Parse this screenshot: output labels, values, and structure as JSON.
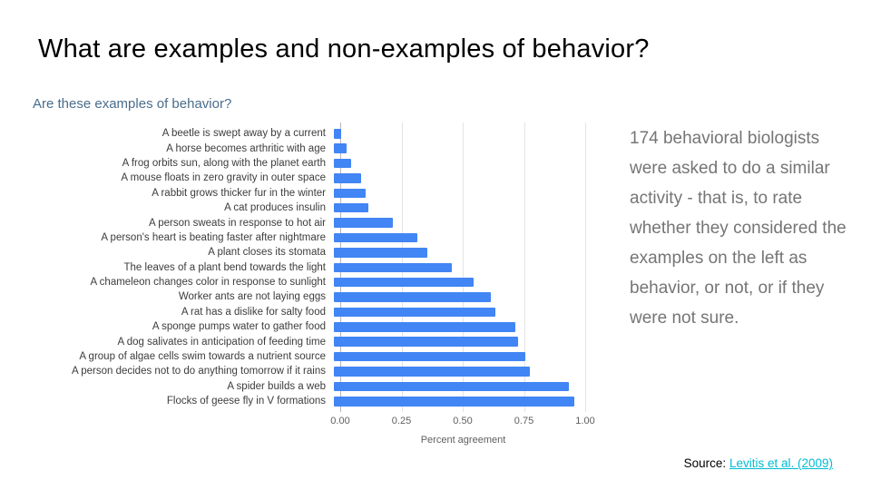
{
  "slide": {
    "title": "What are examples and non-examples of behavior?"
  },
  "chart_data": {
    "type": "bar",
    "orientation": "horizontal",
    "title": "Are these examples of behavior?",
    "xlabel": "Percent agreement",
    "xlim": [
      0,
      1
    ],
    "xticks": [
      "0.00",
      "0.25",
      "0.50",
      "0.75",
      "1.00"
    ],
    "grid": true,
    "bar_color": "#4285f4",
    "categories": [
      "A beetle is swept away by a current",
      "A horse becomes arthritic with age",
      "A frog orbits sun, along with the planet earth",
      "A mouse floats in zero gravity in outer space",
      "A rabbit grows thicker fur in the winter",
      "A cat produces insulin",
      "A person sweats in response to hot air",
      "A person's heart is beating faster after nightmare",
      "A plant closes its stomata",
      "The leaves of a plant bend towards the light",
      "A chameleon changes color in response to sunlight",
      "Worker ants are not laying eggs",
      "A rat has a dislike for salty food",
      "A sponge pumps water to gather food",
      "A dog salivates in anticipation of feeding time",
      "A group of algae cells swim towards a nutrient source",
      "A person decides not to do anything tomorrow if it rains",
      "A spider builds a web",
      "Flocks of geese fly in V formations"
    ],
    "values": [
      0.03,
      0.05,
      0.07,
      0.11,
      0.13,
      0.14,
      0.24,
      0.34,
      0.38,
      0.48,
      0.57,
      0.64,
      0.66,
      0.74,
      0.75,
      0.78,
      0.8,
      0.96,
      0.98
    ]
  },
  "side_note": {
    "text": "174 behavioral biologists were asked to do a similar activity - that is, to rate whether they considered the examples on the left as behavior, or not, or if they were not sure."
  },
  "source": {
    "prefix": "Source: ",
    "link_label": "Levitis et al. (2009)",
    "link_color": "#00bcd4"
  }
}
